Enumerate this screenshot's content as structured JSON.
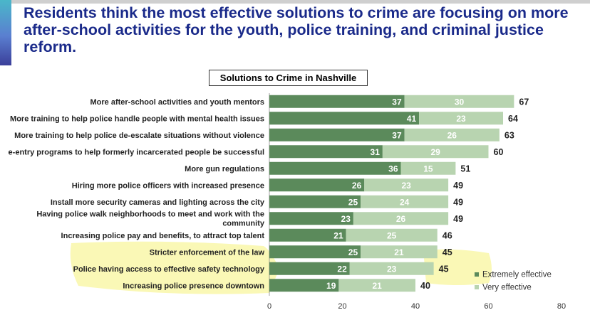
{
  "headline": "Residents think the most effective solutions to crime are focusing on more after-school activities for the youth, police training, and criminal justice reform.",
  "colors": {
    "extremely": "#5b8a5b",
    "very": "#b8d4b0",
    "highlight": "#f5f27a",
    "headline": "#1a2a8a"
  },
  "chart_data": {
    "type": "bar",
    "orientation": "horizontal",
    "stacked": true,
    "title": "Solutions to Crime in Nashville",
    "categories": [
      "More after-school activities and youth mentors",
      "More training to help police handle people with mental health issues",
      "More training to help police de-escalate situations without violence",
      "e-entry programs to help formerly incarcerated people be successful",
      "More gun regulations",
      "Hiring more police officers with increased presence",
      "Install more security cameras and lighting across the city",
      "Having police walk neighborhoods to meet and work with the community",
      "Increasing police pay and benefits, to attract top talent",
      "Stricter enforcement of the law",
      "Police having access to effective safety technology",
      "Increasing police presence downtown"
    ],
    "label_lines": [
      [
        "More after-school activities and youth mentors"
      ],
      [
        "More training to help police handle people with mental health issues"
      ],
      [
        "More training to help police de-escalate situations without violence"
      ],
      [
        "e-entry programs to help formerly incarcerated people be successful"
      ],
      [
        "More gun regulations"
      ],
      [
        "Hiring more police officers with increased presence"
      ],
      [
        "Install more security cameras and lighting across the city"
      ],
      [
        "Having police walk neighborhoods to meet and work with the",
        "community"
      ],
      [
        "Increasing police pay and benefits, to attract top talent"
      ],
      [
        "Stricter enforcement of the law"
      ],
      [
        "Police having access to effective safety technology"
      ],
      [
        "Increasing police presence downtown"
      ]
    ],
    "series": [
      {
        "name": "Extremely effective",
        "values": [
          37,
          41,
          37,
          31,
          36,
          26,
          25,
          23,
          21,
          25,
          22,
          19
        ]
      },
      {
        "name": "Very effective",
        "values": [
          30,
          23,
          26,
          29,
          15,
          23,
          24,
          26,
          25,
          21,
          23,
          21
        ]
      }
    ],
    "totals": [
      67,
      64,
      63,
      60,
      51,
      49,
      49,
      49,
      46,
      45,
      45,
      40
    ],
    "xlim": [
      0,
      80
    ],
    "xticks": [
      0,
      20,
      40,
      60,
      80
    ],
    "legend_position": "bottom-right"
  }
}
